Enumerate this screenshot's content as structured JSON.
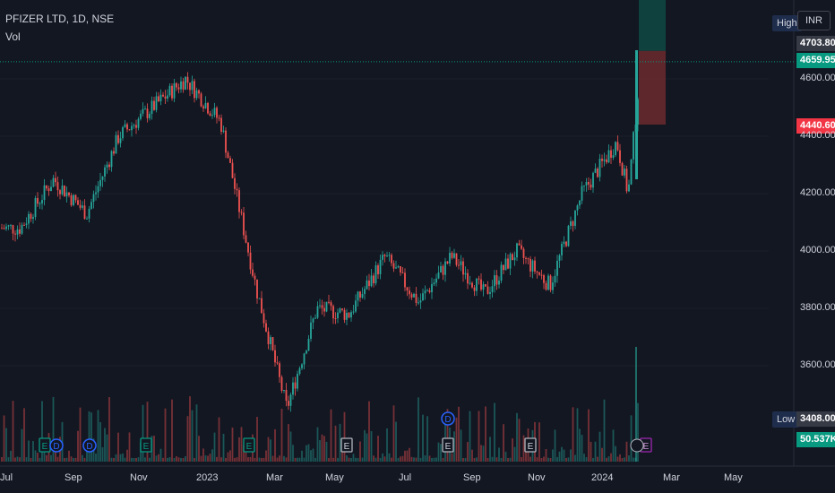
{
  "header": {
    "title": "PFIZER LTD, 1D, NSE",
    "vol_label": "Vol"
  },
  "price_scale": {
    "currency": "INR",
    "high_label": "High",
    "low_label": "Low",
    "ticks": [
      "4600.00",
      "4400.00",
      "4200.00",
      "4000.00",
      "3800.00",
      "3600.00"
    ],
    "tick_values": [
      4600,
      4400,
      4200,
      4000,
      3800,
      3600
    ],
    "high_value": "4703.80",
    "last_value": "4659.95",
    "stop_value": "4440.60",
    "low_value": "3408.00",
    "volume_value": "50.537K"
  },
  "time_axis": [
    "Jul",
    "Sep",
    "Nov",
    "2023",
    "Mar",
    "May",
    "Jul",
    "Sep",
    "Nov",
    "2024",
    "Mar",
    "May"
  ],
  "event_markers": [
    "E",
    "D",
    "D",
    "E",
    "E",
    "E",
    "E",
    "D",
    "E",
    "E"
  ],
  "colors": {
    "up": "#26a69a",
    "down": "#ef5350",
    "background": "#131722",
    "grid": "#2a2e39",
    "last_price_bg": "#089981",
    "stop_bg": "#f23645",
    "high_bg": "#363a45",
    "target_zone": "#0f4a44",
    "stop_zone": "#6b2a2d"
  },
  "chart_data": {
    "type": "candlestick",
    "title": "PFIZER LTD, 1D, NSE",
    "y_range": [
      3400,
      4700
    ],
    "anchors": [
      {
        "x": "2022-07",
        "y": 4080
      },
      {
        "x": "2022-08",
        "y": 4250
      },
      {
        "x": "2022-09",
        "y": 4130
      },
      {
        "x": "2022-10",
        "y": 4400
      },
      {
        "x": "2022-11",
        "y": 4500
      },
      {
        "x": "2022-12",
        "y": 4600
      },
      {
        "x": "2023-01",
        "y": 4450
      },
      {
        "x": "2023-02",
        "y": 3860
      },
      {
        "x": "2023-03",
        "y": 3450
      },
      {
        "x": "2023-04",
        "y": 3800
      },
      {
        "x": "2023-05",
        "y": 3780
      },
      {
        "x": "2023-06",
        "y": 3980
      },
      {
        "x": "2023-07",
        "y": 3820
      },
      {
        "x": "2023-08",
        "y": 3980
      },
      {
        "x": "2023-09",
        "y": 3850
      },
      {
        "x": "2023-10",
        "y": 4000
      },
      {
        "x": "2023-11",
        "y": 3880
      },
      {
        "x": "2023-12",
        "y": 4200
      },
      {
        "x": "2024-01",
        "y": 4380
      },
      {
        "x": "2024-01-25",
        "y": 4200
      },
      {
        "x": "2024-02-05",
        "y": 4660
      }
    ]
  }
}
